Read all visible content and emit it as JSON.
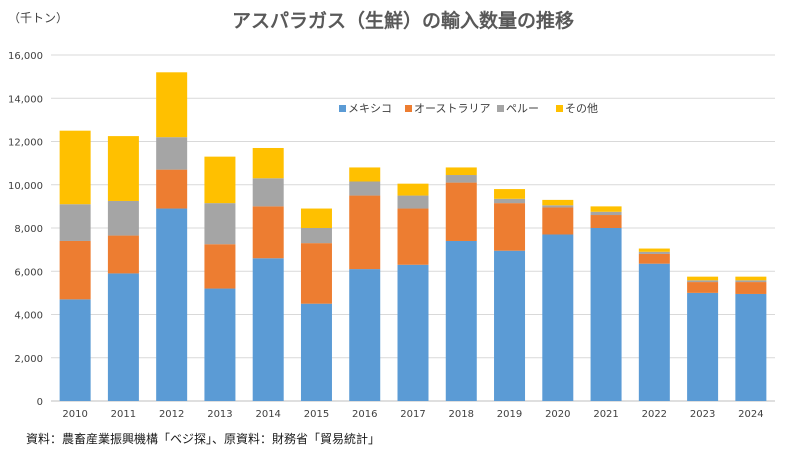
{
  "chart_data": {
    "type": "bar",
    "stacked": true,
    "title": "アスパラガス（生鮮）の輸入数量の推移",
    "unit_label": "（千トン）",
    "source": "資料：農畜産業振興機構「ベジ探」、原資料：財務省「貿易統計」",
    "xlabel": "",
    "ylabel": "",
    "ylim": [
      0,
      16000
    ],
    "ytick_step": 2000,
    "grid": true,
    "legend_position": "top-right",
    "categories": [
      "2010",
      "2011",
      "2012",
      "2013",
      "2014",
      "2015",
      "2016",
      "2017",
      "2018",
      "2019",
      "2020",
      "2021",
      "2022",
      "2023",
      "2024"
    ],
    "series": [
      {
        "name": "メキシコ",
        "color": "#5B9BD5",
        "values": [
          4700,
          5900,
          8900,
          5200,
          6600,
          4500,
          6100,
          6300,
          7400,
          6950,
          7700,
          8000,
          6350,
          5000,
          4950
        ]
      },
      {
        "name": "オーストラリア",
        "color": "#ED7D31",
        "values": [
          2700,
          1750,
          1800,
          2050,
          2400,
          2800,
          3400,
          2600,
          2700,
          2200,
          1250,
          600,
          450,
          500,
          550
        ]
      },
      {
        "name": "ペルー",
        "color": "#A5A5A5",
        "values": [
          1700,
          1600,
          1500,
          1900,
          1300,
          700,
          650,
          600,
          350,
          200,
          100,
          150,
          100,
          80,
          80
        ]
      },
      {
        "name": "その他",
        "color": "#FFC000",
        "values": [
          3400,
          3000,
          3000,
          2150,
          1400,
          900,
          650,
          550,
          350,
          450,
          250,
          250,
          150,
          170,
          170
        ]
      }
    ]
  }
}
